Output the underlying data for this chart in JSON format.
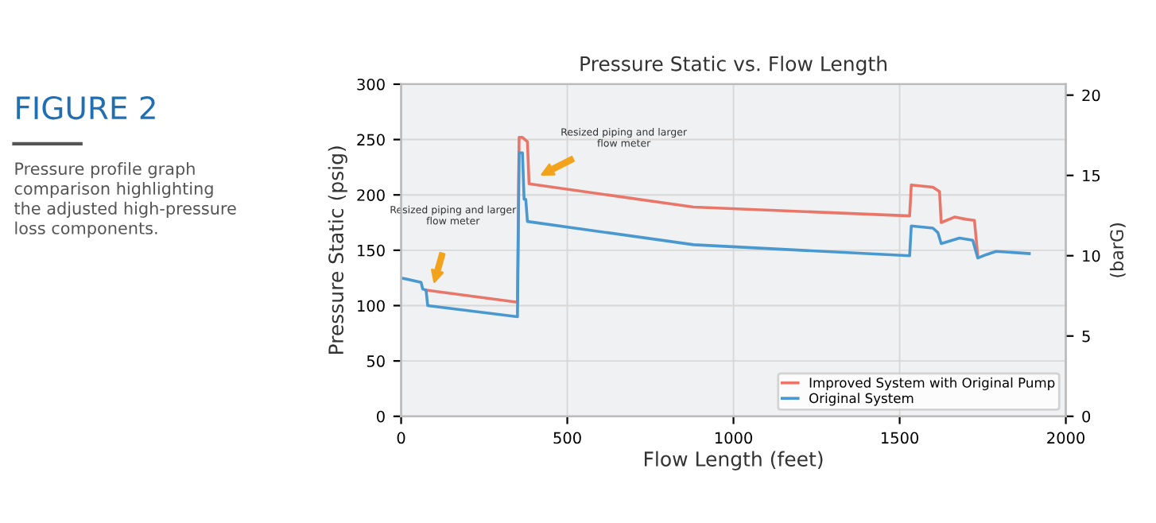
{
  "chart_data": {
    "type": "line",
    "title": "Pressure Static vs. Flow Length",
    "xlabel": "Flow Length (feet)",
    "ylabel": "Pressure Static (psig)",
    "y2label": "(barG)",
    "xlim": [
      0,
      2000
    ],
    "xticks": [
      0,
      500,
      1000,
      1500,
      2000
    ],
    "ylim": [
      0,
      300
    ],
    "yticks": [
      0,
      50,
      100,
      150,
      200,
      250,
      300
    ],
    "y2lim": [
      0,
      20.68
    ],
    "y2ticks": [
      0,
      5,
      10,
      15,
      20
    ],
    "grid": true,
    "legend": "bottom right",
    "series": [
      {
        "name": "Improved System with Original Pump",
        "color": "#e8776a",
        "x": [
          75,
          350,
          355,
          365,
          380,
          385,
          880,
          1530,
          1535,
          1600,
          1620,
          1625,
          1665,
          1700,
          1725,
          1735
        ],
        "values": [
          114,
          103,
          252,
          252,
          248,
          210,
          189,
          181,
          209,
          207,
          203,
          175,
          180,
          178,
          177,
          145
        ]
      },
      {
        "name": "Original System",
        "color": "#4a98d0",
        "x": [
          0,
          60,
          65,
          75,
          80,
          350,
          355,
          365,
          370,
          375,
          380,
          880,
          1530,
          1535,
          1600,
          1615,
          1625,
          1680,
          1720,
          1735,
          1760,
          1790,
          1890
        ],
        "values": [
          125,
          121,
          115,
          114,
          100,
          90,
          238,
          238,
          196,
          196,
          176,
          155,
          145,
          172,
          170,
          166,
          156,
          161,
          159,
          143,
          146,
          149,
          147
        ]
      }
    ],
    "annotations": [
      "Resized piping and larger\nflow meter",
      "Resized piping and larger\nflow meter",
      "FIGURE 2",
      "Pressure profile graph\ncomparison highlighting\nthe adjusted high-pressure\nloss components."
    ]
  }
}
